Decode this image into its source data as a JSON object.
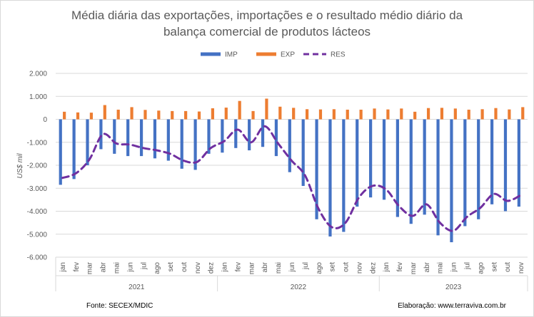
{
  "chart_data": {
    "type": "bar",
    "title_lines": [
      "Média diária das exportações, importações e o resultado médio diário da",
      "balança comercial de produtos lácteos"
    ],
    "ylabel": "US$ mil",
    "ylim": [
      -6000,
      2000
    ],
    "yticks": [
      "2.000",
      "1.000",
      "0",
      "-1.000",
      "-2.000",
      "-3.000",
      "-4.000",
      "-5.000",
      "-6.000"
    ],
    "ytick_values": [
      2000,
      1000,
      0,
      -1000,
      -2000,
      -3000,
      -4000,
      -5000,
      -6000
    ],
    "grid": true,
    "legend_position": "top",
    "colors": {
      "IMP": "#4472c4",
      "EXP": "#ed7d31",
      "RES": "#7030a0"
    },
    "categories": [
      "jan",
      "fev",
      "mar",
      "abr",
      "mai",
      "jun",
      "jul",
      "ago",
      "set",
      "out",
      "nov",
      "dez",
      "jan",
      "fev",
      "mar",
      "abr",
      "mai",
      "jun",
      "jul",
      "ago",
      "set",
      "out",
      "nov",
      "dez",
      "jan",
      "fev",
      "mar",
      "abr",
      "mai",
      "jun",
      "jul",
      "ago",
      "set",
      "out",
      "nov"
    ],
    "years": [
      {
        "label": "2021",
        "count": 12
      },
      {
        "label": "2022",
        "count": 12
      },
      {
        "label": "2023",
        "count": 11
      }
    ],
    "series": [
      {
        "name": "IMP",
        "kind": "bar",
        "values": [
          -2850,
          -2600,
          -2000,
          -1300,
          -1500,
          -1600,
          -1600,
          -1700,
          -1800,
          -2150,
          -2200,
          -1500,
          -1450,
          -1250,
          -1350,
          -1200,
          -1600,
          -2300,
          -2900,
          -4350,
          -5100,
          -4900,
          -3800,
          -3400,
          -3500,
          -4250,
          -4550,
          -4150,
          -5050,
          -5350,
          -4650,
          -4350,
          -3700,
          -4000,
          -3800
        ]
      },
      {
        "name": "EXP",
        "kind": "bar",
        "values": [
          330,
          300,
          290,
          620,
          420,
          530,
          410,
          380,
          360,
          360,
          340,
          480,
          510,
          800,
          360,
          900,
          550,
          500,
          440,
          430,
          440,
          420,
          420,
          470,
          430,
          470,
          330,
          490,
          500,
          470,
          420,
          440,
          490,
          430,
          530
        ]
      },
      {
        "name": "RES",
        "kind": "line",
        "values": [
          -2550,
          -2350,
          -1750,
          -650,
          -1050,
          -1100,
          -1250,
          -1350,
          -1500,
          -1800,
          -1850,
          -1250,
          -950,
          -450,
          -1000,
          -300,
          -1050,
          -1800,
          -2450,
          -3900,
          -4700,
          -4500,
          -3400,
          -2900,
          -3050,
          -3800,
          -4200,
          -3700,
          -4500,
          -4850,
          -4250,
          -3850,
          -3250,
          -3550,
          -3300
        ]
      }
    ]
  },
  "footer": {
    "source": "Fonte: SECEX/MDIC",
    "credit": "Elaboração: www.terraviva.com.br"
  }
}
